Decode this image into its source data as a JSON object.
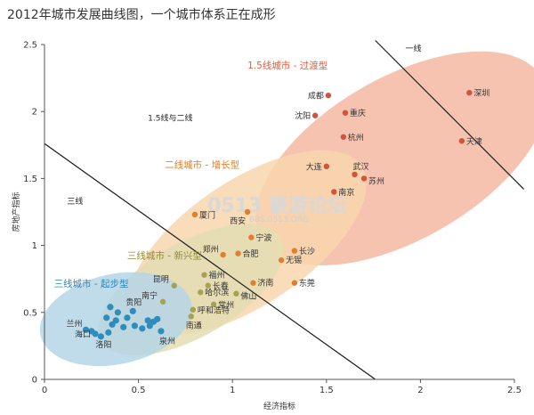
{
  "title": "2012年城市发展曲线图，一个城市体系正在成形",
  "watermark": {
    "line1": "0513 豪游论坛",
    "line2": "BBS.0513.ORG"
  },
  "chart_data": {
    "type": "scatter",
    "title": "2012年城市发展曲线图，一个城市体系正在成形",
    "xlabel": "经济指标",
    "ylabel": "房地产指标",
    "xlim": [
      0,
      2.5
    ],
    "ylim": [
      0,
      2.5
    ],
    "xticks": [
      "0",
      "0.5",
      "1",
      "1.5",
      "2",
      "2.5"
    ],
    "yticks": [
      "0",
      "0.5",
      "1",
      "1.5",
      "2",
      "2.5"
    ],
    "grid": false,
    "region_labels": [
      {
        "text": "一线",
        "x": 1.92,
        "y": 2.45
      },
      {
        "text": "1.5线与二线",
        "x": 0.55,
        "y": 1.93
      },
      {
        "text": "三线",
        "x": 0.12,
        "y": 1.31
      }
    ],
    "dividers": [
      {
        "name": "一线",
        "x1": 1.76,
        "y1": 2.53,
        "x2": 2.55,
        "y2": 1.42
      },
      {
        "name": "三线",
        "x1": 0.0,
        "y1": 1.76,
        "x2": 1.76,
        "y2": 0.0
      }
    ],
    "clusters": [
      {
        "name": "1.5线城市 - 过渡型",
        "color": "#e85a3c",
        "fill": "#f4b9a3",
        "dot": "#d2553a",
        "label_pos": {
          "x": 1.08,
          "y": 2.32
        },
        "ellipse": {
          "cx": 1.9,
          "cy": 1.65,
          "rx": 0.86,
          "ry": 0.43,
          "angle": 30
        },
        "points": [
          {
            "name": "深圳",
            "x": 2.26,
            "y": 2.14
          },
          {
            "name": "成都",
            "x": 1.51,
            "y": 2.12
          },
          {
            "name": "沈阳",
            "x": 1.44,
            "y": 1.97
          },
          {
            "name": "重庆",
            "x": 1.6,
            "y": 1.99
          },
          {
            "name": "杭州",
            "x": 1.59,
            "y": 1.81
          },
          {
            "name": "天津",
            "x": 2.22,
            "y": 1.78
          },
          {
            "name": "大连",
            "x": 1.5,
            "y": 1.59
          },
          {
            "name": "武汉",
            "x": 1.65,
            "y": 1.53
          },
          {
            "name": "苏州",
            "x": 1.7,
            "y": 1.5
          },
          {
            "name": "南京",
            "x": 1.54,
            "y": 1.4
          }
        ]
      },
      {
        "name": "二线城市 - 增长型",
        "color": "#e07d28",
        "fill": "#f8d6ad",
        "dot": "#e07f2e",
        "label_pos": {
          "x": 0.64,
          "y": 1.58
        },
        "ellipse": {
          "cx": 1.08,
          "cy": 1.02,
          "rx": 0.73,
          "ry": 0.33,
          "angle": 34
        },
        "points": [
          {
            "name": "厦门",
            "x": 0.8,
            "y": 1.23
          },
          {
            "name": "西安",
            "x": 1.08,
            "y": 1.25
          },
          {
            "name": "宁波",
            "x": 1.1,
            "y": 1.06
          },
          {
            "name": "郑州",
            "x": 0.95,
            "y": 0.93
          },
          {
            "name": "合肥",
            "x": 1.03,
            "y": 0.94
          },
          {
            "name": "长沙",
            "x": 1.33,
            "y": 0.96
          },
          {
            "name": "无锡",
            "x": 1.26,
            "y": 0.89
          },
          {
            "name": "济南",
            "x": 1.11,
            "y": 0.72
          },
          {
            "name": "东莞",
            "x": 1.33,
            "y": 0.72
          }
        ]
      },
      {
        "name": "三线城市 - 新兴型",
        "color": "#8f8a32",
        "fill": "#e4ddb3",
        "dot": "#a6a254",
        "label_pos": {
          "x": 0.44,
          "y": 0.9
        },
        "ellipse": {
          "cx": 0.78,
          "cy": 0.67,
          "rx": 0.55,
          "ry": 0.25,
          "angle": 30
        },
        "points": [
          {
            "name": "昆明",
            "x": 0.69,
            "y": 0.7
          },
          {
            "name": "福州",
            "x": 0.85,
            "y": 0.78
          },
          {
            "name": "长春",
            "x": 0.87,
            "y": 0.7
          },
          {
            "name": "哈尔滨",
            "x": 0.83,
            "y": 0.65
          },
          {
            "name": "佛山",
            "x": 1.02,
            "y": 0.64
          },
          {
            "name": "南宁",
            "x": 0.63,
            "y": 0.58
          },
          {
            "name": "常州",
            "x": 0.9,
            "y": 0.56
          },
          {
            "name": "呼和浩特",
            "x": 0.79,
            "y": 0.52
          },
          {
            "name": "南通",
            "x": 0.78,
            "y": 0.47
          }
        ]
      },
      {
        "name": "三线城市 - 起步型",
        "color": "#2e86b8",
        "fill": "#b5d5e6",
        "dot": "#2f8dbd",
        "label_pos": {
          "x": 0.05,
          "y": 0.69
        },
        "ellipse": {
          "cx": 0.38,
          "cy": 0.45,
          "rx": 0.41,
          "ry": 0.24,
          "angle": 12
        },
        "points": [
          {
            "name": "贵阳",
            "x": 0.47,
            "y": 0.51
          },
          {
            "name": "兰州",
            "x": 0.22,
            "y": 0.37
          },
          {
            "name": "海口",
            "x": 0.27,
            "y": 0.34
          },
          {
            "name": "洛阳",
            "x": 0.3,
            "y": 0.32
          },
          {
            "name": "泉州",
            "x": 0.62,
            "y": 0.36
          },
          {
            "name": "",
            "x": 0.35,
            "y": 0.54
          },
          {
            "name": "",
            "x": 0.39,
            "y": 0.5
          },
          {
            "name": "",
            "x": 0.33,
            "y": 0.46
          },
          {
            "name": "",
            "x": 0.38,
            "y": 0.44
          },
          {
            "name": "",
            "x": 0.44,
            "y": 0.46
          },
          {
            "name": "",
            "x": 0.36,
            "y": 0.41
          },
          {
            "name": "",
            "x": 0.42,
            "y": 0.39
          },
          {
            "name": "",
            "x": 0.48,
            "y": 0.4
          },
          {
            "name": "",
            "x": 0.55,
            "y": 0.44
          },
          {
            "name": "",
            "x": 0.58,
            "y": 0.43
          },
          {
            "name": "",
            "x": 0.56,
            "y": 0.4
          },
          {
            "name": "",
            "x": 0.6,
            "y": 0.45
          },
          {
            "name": "",
            "x": 0.25,
            "y": 0.36
          },
          {
            "name": "",
            "x": 0.34,
            "y": 0.35
          },
          {
            "name": "",
            "x": 0.52,
            "y": 0.38
          }
        ]
      }
    ]
  }
}
